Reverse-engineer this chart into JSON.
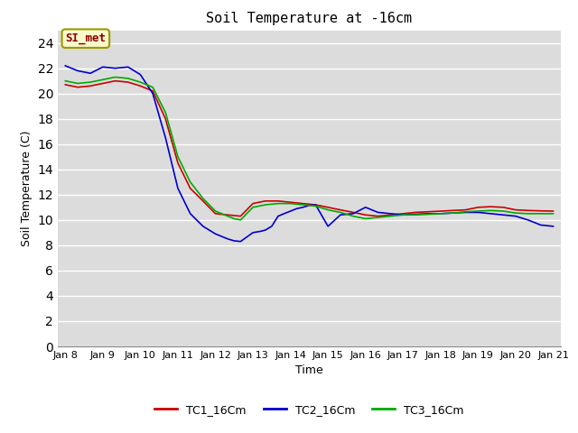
{
  "title": "Soil Temperature at -16cm",
  "xlabel": "Time",
  "ylabel": "Soil Temperature (C)",
  "ylim": [
    0,
    25
  ],
  "yticks": [
    0,
    2,
    4,
    6,
    8,
    10,
    12,
    14,
    16,
    18,
    20,
    22,
    24
  ],
  "annotation_text": "SI_met",
  "annotation_color": "#8B0000",
  "annotation_bg": "#FFFACD",
  "annotation_edge": "#999900",
  "bg_color": "#DCDCDC",
  "grid_color": "#FFFFFF",
  "fig_bg": "#FFFFFF",
  "series": {
    "TC1_16Cm": {
      "color": "#CC0000",
      "x": [
        0,
        0.33,
        0.67,
        1.0,
        1.33,
        1.67,
        2.0,
        2.33,
        2.67,
        3.0,
        3.33,
        3.67,
        4.0,
        4.33,
        4.5,
        4.67,
        5.0,
        5.33,
        5.67,
        6.0,
        6.33,
        6.5,
        6.67,
        7.0,
        7.33,
        7.67,
        8.0,
        8.33,
        8.67,
        9.0,
        9.33,
        9.67,
        10.0,
        10.33,
        10.67,
        11.0,
        11.33,
        11.67,
        12.0,
        12.33,
        12.67,
        13.0
      ],
      "y": [
        20.7,
        20.5,
        20.6,
        20.8,
        21.0,
        20.9,
        20.6,
        20.2,
        18.0,
        14.5,
        12.5,
        11.5,
        10.5,
        10.4,
        10.35,
        10.3,
        11.3,
        11.5,
        11.5,
        11.4,
        11.3,
        11.25,
        11.2,
        11.0,
        10.8,
        10.6,
        10.4,
        10.3,
        10.4,
        10.5,
        10.6,
        10.65,
        10.7,
        10.75,
        10.8,
        11.0,
        11.05,
        11.0,
        10.8,
        10.75,
        10.72,
        10.7
      ]
    },
    "TC2_16Cm": {
      "color": "#0000CC",
      "x": [
        0,
        0.33,
        0.67,
        1.0,
        1.33,
        1.67,
        2.0,
        2.33,
        2.67,
        3.0,
        3.33,
        3.67,
        4.0,
        4.33,
        4.5,
        4.67,
        5.0,
        5.2,
        5.33,
        5.5,
        5.67,
        5.83,
        6.0,
        6.17,
        6.33,
        6.5,
        6.67,
        7.0,
        7.33,
        7.67,
        8.0,
        8.33,
        8.67,
        9.0,
        9.33,
        9.67,
        10.0,
        10.33,
        10.67,
        11.0,
        11.33,
        11.67,
        12.0,
        12.33,
        12.67,
        13.0
      ],
      "y": [
        22.2,
        21.8,
        21.6,
        22.1,
        22.0,
        22.1,
        21.5,
        20.0,
        16.5,
        12.5,
        10.5,
        9.5,
        8.9,
        8.5,
        8.35,
        8.3,
        9.0,
        9.1,
        9.2,
        9.5,
        10.3,
        10.5,
        10.7,
        10.9,
        11.0,
        11.15,
        11.2,
        9.5,
        10.4,
        10.5,
        11.0,
        10.6,
        10.5,
        10.4,
        10.45,
        10.5,
        10.5,
        10.55,
        10.6,
        10.6,
        10.5,
        10.4,
        10.3,
        10.0,
        9.6,
        9.5
      ]
    },
    "TC3_16Cm": {
      "color": "#00AA00",
      "x": [
        0,
        0.33,
        0.67,
        1.0,
        1.33,
        1.67,
        2.0,
        2.33,
        2.67,
        3.0,
        3.33,
        3.67,
        4.0,
        4.33,
        4.5,
        4.67,
        5.0,
        5.33,
        5.67,
        6.0,
        6.33,
        6.5,
        6.67,
        7.0,
        7.33,
        7.67,
        8.0,
        8.33,
        8.67,
        9.0,
        9.33,
        9.67,
        10.0,
        10.33,
        10.67,
        11.0,
        11.33,
        11.67,
        12.0,
        12.33,
        12.67,
        13.0
      ],
      "y": [
        21.0,
        20.8,
        20.9,
        21.1,
        21.3,
        21.2,
        20.9,
        20.5,
        18.5,
        15.0,
        13.0,
        11.7,
        10.7,
        10.3,
        10.1,
        10.0,
        11.0,
        11.2,
        11.3,
        11.3,
        11.2,
        11.15,
        11.1,
        10.8,
        10.6,
        10.3,
        10.1,
        10.2,
        10.3,
        10.4,
        10.4,
        10.45,
        10.5,
        10.55,
        10.65,
        10.7,
        10.75,
        10.7,
        10.55,
        10.5,
        10.5,
        10.5
      ]
    }
  },
  "xtick_labels": [
    "Jan 8",
    "Jan 9",
    "Jan 10",
    "Jan 11",
    "Jan 12",
    "Jan 13",
    "Jan 14",
    "Jan 15",
    "Jan 16",
    "Jan 17",
    "Jan 18",
    "Jan 19",
    "Jan 20",
    "Jan 21"
  ],
  "xtick_positions": [
    0,
    1,
    2,
    3,
    4,
    5,
    6,
    7,
    8,
    9,
    10,
    11,
    12,
    13
  ]
}
